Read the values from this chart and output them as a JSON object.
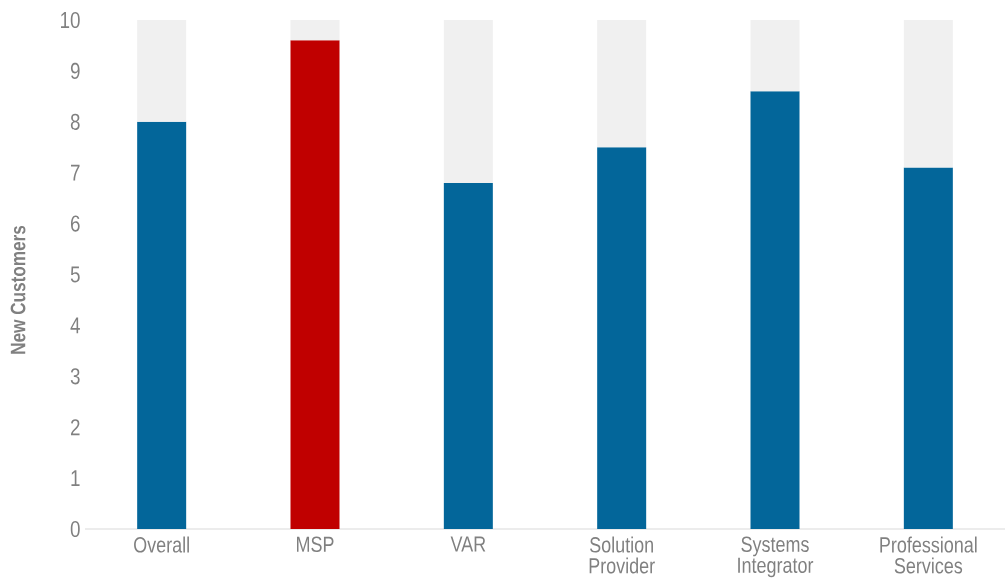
{
  "chart_data": {
    "type": "bar",
    "ylabel": "New Customers",
    "categories": [
      "Overall",
      "MSP",
      "VAR",
      "Solution Provider",
      "Systems Integrator",
      "Professional Services"
    ],
    "series": [
      {
        "colors": [
          "#03669a",
          "#c00000",
          "#03669a",
          "#03669a",
          "#03669a",
          "#03669a"
        ],
        "values": [
          8.0,
          9.6,
          6.8,
          7.5,
          8.6,
          7.1
        ]
      },
      {
        "color": "#f0f0f0",
        "values": [
          2.0,
          0.4,
          3.2,
          2.5,
          1.4,
          2.9
        ]
      }
    ],
    "stacked": true,
    "ylim": [
      0,
      10
    ],
    "yticks": [
      0,
      1,
      2,
      3,
      4,
      5,
      6,
      7,
      8,
      9,
      10
    ]
  }
}
